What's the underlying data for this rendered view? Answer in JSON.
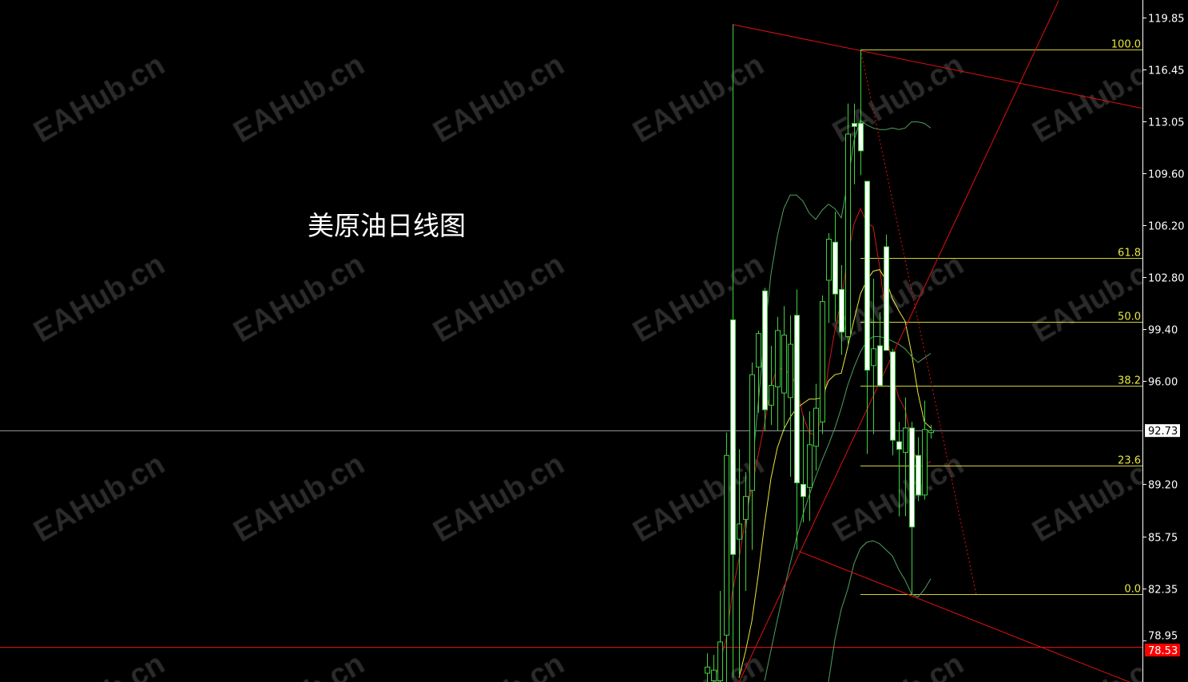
{
  "title": "美原油日线图",
  "watermark": "EAHub.cn",
  "colors": {
    "background": "#000000",
    "candle_outline": "#3fd13f",
    "bear_body": "#ffffff",
    "bull_body": "#000000",
    "ma_fast": "#d01818",
    "ma_slow": "#e8e840",
    "bands": "#4f9f5f",
    "trendline": "#e01010",
    "fibo": "#e8e840",
    "current_price_line": "#8a8f98"
  },
  "chart_data": {
    "type": "candlestick",
    "title": "美原油日线图",
    "ylim": [
      76.2,
      121.0
    ],
    "y_ticks": [
      "119.85",
      "116.45",
      "113.05",
      "109.60",
      "106.20",
      "102.80",
      "99.40",
      "96.00",
      "89.20",
      "85.75",
      "82.35",
      "78.95"
    ],
    "current_price": "92.73",
    "alert_price": "78.53",
    "candles": [
      [
        76.8,
        78.1,
        76.2,
        77.2
      ],
      [
        76.3,
        78.0,
        76.2,
        77.0
      ],
      [
        76.3,
        82.2,
        76.2,
        78.85
      ],
      [
        79.3,
        92.6,
        76.2,
        91.1
      ],
      [
        100.0,
        119.4,
        76.5,
        84.6
      ],
      [
        85.6,
        91.5,
        76.6,
        86.6
      ],
      [
        86.9,
        90.0,
        82.2,
        88.4
      ],
      [
        88.8,
        97.2,
        84.9,
        96.4
      ],
      [
        96.9,
        99.3,
        93.9,
        99.1
      ],
      [
        101.9,
        102.1,
        92.7,
        94.1
      ],
      [
        94.4,
        98.3,
        93.1,
        95.7
      ],
      [
        95.6,
        100.2,
        92.7,
        99.3
      ],
      [
        95.2,
        100.9,
        92.7,
        99.0
      ],
      [
        94.9,
        100.3,
        89.7,
        98.4
      ],
      [
        100.3,
        102.0,
        84.9,
        89.3
      ],
      [
        89.2,
        93.7,
        86.7,
        88.4
      ],
      [
        89.0,
        94.0,
        86.8,
        91.8
      ],
      [
        91.7,
        95.8,
        90.1,
        94.2
      ],
      [
        93.3,
        101.6,
        92.5,
        101.2
      ],
      [
        102.6,
        105.7,
        99.8,
        105.3
      ],
      [
        105.1,
        107.1,
        99.9,
        101.7
      ],
      [
        102.0,
        103.6,
        97.7,
        99.2
      ],
      [
        98.9,
        114.2,
        98.3,
        112.2
      ],
      [
        112.9,
        114.2,
        108.9,
        112.7
      ],
      [
        112.9,
        117.75,
        109.5,
        111.1
      ],
      [
        109.1,
        109.1,
        91.2,
        96.7
      ],
      [
        97.0,
        102.7,
        92.5,
        98.1
      ],
      [
        98.3,
        100.5,
        95.7,
        95.7
      ],
      [
        104.8,
        105.6,
        98.0,
        98.0
      ],
      [
        97.9,
        98.1,
        91.1,
        92.1
      ],
      [
        92.0,
        93.3,
        87.1,
        91.5
      ],
      [
        91.3,
        94.9,
        87.1,
        92.9
      ],
      [
        92.9,
        93.3,
        82.0,
        86.4
      ],
      [
        91.1,
        92.3,
        88.1,
        88.5
      ],
      [
        88.5,
        94.7,
        88.2,
        92.8
      ],
      [
        92.6,
        93.1,
        92.2,
        92.73
      ]
    ],
    "indicators": {
      "ma_fast": [
        null,
        76.2,
        77.5,
        79.05,
        82.2,
        84.3,
        86.9,
        89.0,
        91.1,
        93.2,
        95.6,
        96.9,
        96.7,
        96.5,
        95.7,
        93.7,
        92.6,
        92.4,
        93.7,
        96.9,
        99.3,
        101.3,
        104.1,
        106.3,
        107.3,
        106.4,
        106.1,
        103.5,
        100.1,
        96.3,
        94.9,
        94.1,
        92.1,
        90.3,
        90.5,
        90.7
      ],
      "ma_slow": [
        null,
        null,
        null,
        null,
        null,
        76.5,
        78.2,
        80.2,
        83.2,
        86.6,
        89.6,
        91.6,
        92.8,
        93.6,
        94.2,
        94.5,
        94.8,
        94.8,
        94.9,
        96.0,
        96.4,
        96.5,
        98.2,
        100.0,
        101.7,
        102.6,
        103.2,
        103.3,
        102.6,
        101.4,
        100.6,
        99.9,
        97.8,
        95.2,
        93.3,
        92.9
      ],
      "band_upper": [
        null,
        null,
        null,
        null,
        null,
        null,
        86,
        90,
        94.5,
        99,
        103,
        105.5,
        107.3,
        108.2,
        108.2,
        107.8,
        107.0,
        106.6,
        107.2,
        107.6,
        107.3,
        106.7,
        109.0,
        111.8,
        113.1,
        112.8,
        112.6,
        112.5,
        112.5,
        112.6,
        112.5,
        112.6,
        113.0,
        113.0,
        112.9,
        112.6
      ],
      "band_middle": [
        null,
        null,
        null,
        null,
        null,
        null,
        null,
        null,
        null,
        76.3,
        78.3,
        80.3,
        82.2,
        84.0,
        85.7,
        87.2,
        88.5,
        89.7,
        90.8,
        91.8,
        92.9,
        94.2,
        95.7,
        96.9,
        97.9,
        98.6,
        98.9,
        98.9,
        98.8,
        98.6,
        98.4,
        98.1,
        97.6,
        97.2,
        97.5,
        97.8
      ],
      "band_lower": [
        null,
        null,
        null,
        null,
        null,
        null,
        null,
        null,
        null,
        null,
        null,
        null,
        null,
        null,
        null,
        null,
        null,
        null,
        null,
        76.2,
        79.0,
        81.0,
        82.3,
        84.0,
        85.0,
        85.4,
        85.5,
        85.3,
        84.9,
        84.5,
        83.6,
        82.9,
        82.0,
        81.8,
        82.3,
        83.0
      ]
    },
    "trendlines": [
      {
        "from": [
          4,
          119.4
        ],
        "to": [
          68,
          113.9
        ],
        "style": "solid"
      },
      {
        "from": [
          5,
          76.2
        ],
        "to": [
          55,
          120.96
        ],
        "style": "solid"
      },
      {
        "from": [
          14.4,
          84.8
        ],
        "to": [
          68,
          75.9
        ],
        "style": "solid"
      },
      {
        "from": [
          24,
          117.75
        ],
        "to": [
          42.1,
          82.0
        ],
        "style": "dotted"
      }
    ],
    "horizontal_lines": [
      {
        "price": 78.53,
        "color": "red"
      },
      {
        "price": 92.73,
        "color": "gray"
      }
    ],
    "fibonacci": {
      "start_bar": 24,
      "high": 117.75,
      "low": 82.0,
      "levels": [
        {
          "label": "100.0",
          "price": 117.75
        },
        {
          "label": "61.8",
          "price": 104.09
        },
        {
          "label": "50.0",
          "price": 99.88
        },
        {
          "label": "38.2",
          "price": 95.66
        },
        {
          "label": "23.6",
          "price": 90.44
        },
        {
          "label": "0.0",
          "price": 82.0
        }
      ]
    }
  }
}
